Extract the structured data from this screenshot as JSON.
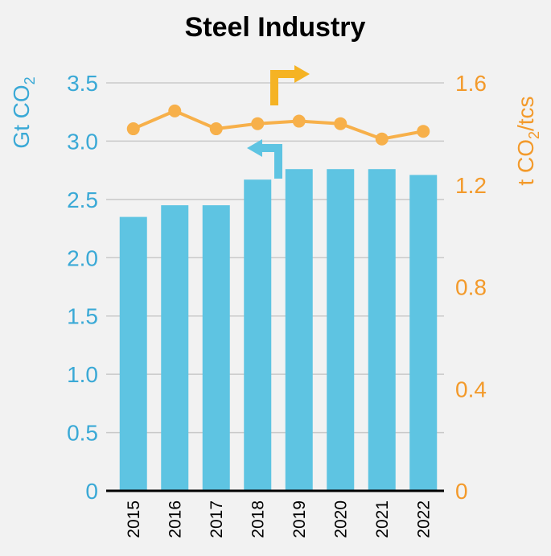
{
  "colors": {
    "background": "#f2f2f2",
    "bar": "#5ec4e2",
    "line": "#f7b04a",
    "left_axis": "#3aa9d6",
    "right_axis": "#f39a2b",
    "arrow_right": "#f5b324",
    "arrow_left": "#5ec4e2",
    "grid": "#c9c9c9",
    "baseline": "#000000"
  },
  "chart_data": {
    "type": "bar",
    "title": "Steel Industry",
    "categories": [
      "2015",
      "2016",
      "2017",
      "2018",
      "2019",
      "2020",
      "2021",
      "2022"
    ],
    "series": [
      {
        "type": "bar",
        "axis": "left",
        "values": [
          2.35,
          2.45,
          2.45,
          2.67,
          2.76,
          2.76,
          2.76,
          2.71
        ]
      },
      {
        "type": "line",
        "axis": "right",
        "values": [
          1.42,
          1.49,
          1.42,
          1.44,
          1.45,
          1.44,
          1.38,
          1.41
        ]
      }
    ],
    "ylabel_left": {
      "main": "Gt CO",
      "sub": "2"
    },
    "ylabel_right": {
      "pre": "t CO",
      "sub": "2",
      "post": "/tcs"
    },
    "ylim_left": [
      0,
      3.5
    ],
    "ylim_right": [
      0,
      1.6
    ],
    "yticks_left": [
      "0",
      "0.5",
      "1.0",
      "1.5",
      "2.0",
      "2.5",
      "3.0",
      "3.5"
    ],
    "yticks_left_values": [
      0,
      0.5,
      1.0,
      1.5,
      2.0,
      2.5,
      3.0,
      3.5
    ],
    "yticks_right": [
      "0",
      "0.4",
      "0.8",
      "1.2",
      "1.6"
    ],
    "yticks_right_values": [
      0,
      0.4,
      0.8,
      1.2,
      1.6
    ],
    "grid": true,
    "annotations": [
      {
        "type": "arrow",
        "direction": "right",
        "points_to": "right axis"
      },
      {
        "type": "arrow",
        "direction": "left",
        "points_to": "left axis"
      }
    ]
  }
}
